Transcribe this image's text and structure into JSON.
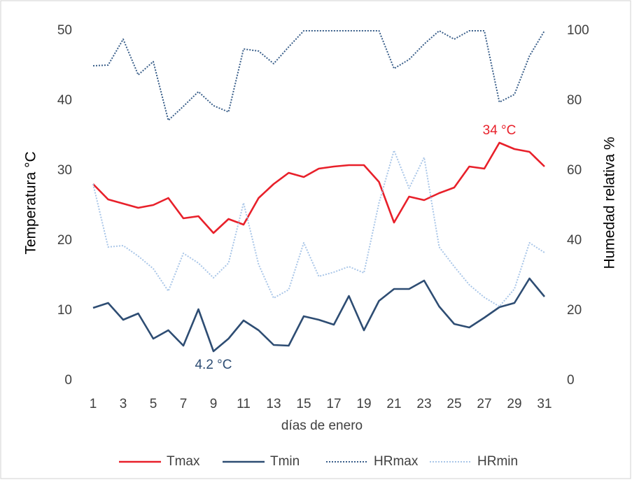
{
  "chart_data": {
    "type": "line",
    "x_label": "días de enero",
    "y_label": "Temperatura °C",
    "y2_label": "Humedad relativa %",
    "x": [
      1,
      2,
      3,
      4,
      5,
      6,
      7,
      8,
      9,
      10,
      11,
      12,
      13,
      14,
      15,
      16,
      17,
      18,
      19,
      20,
      21,
      22,
      23,
      24,
      25,
      26,
      27,
      28,
      29,
      30,
      31
    ],
    "xlim": [
      1,
      31
    ],
    "xticks": [
      1,
      3,
      5,
      7,
      9,
      11,
      13,
      15,
      17,
      19,
      21,
      23,
      25,
      27,
      29,
      31
    ],
    "ylim": [
      0,
      50
    ],
    "yticks": [
      0,
      10,
      20,
      30,
      40,
      50
    ],
    "y2lim": [
      0,
      100
    ],
    "y2ticks": [
      0,
      20,
      40,
      60,
      80,
      100
    ],
    "grid": false,
    "legend": "bottom",
    "series": [
      {
        "name": "Tmax",
        "color": "#e8202a",
        "style": "solid",
        "values": [
          28.1,
          25.9,
          25.3,
          24.7,
          25.1,
          26.1,
          23.2,
          23.5,
          21.1,
          23.1,
          22.3,
          26.1,
          28.1,
          29.7,
          29.1,
          30.3,
          30.6,
          30.8,
          30.8,
          28.4,
          22.6,
          26.3,
          25.8,
          26.8,
          27.6,
          30.6,
          30.3,
          34,
          33.1,
          32.7,
          30.6
        ]
      },
      {
        "name": "Tmin",
        "color": "#2e4d73",
        "style": "solid",
        "values": [
          10.4,
          11.1,
          8.7,
          9.6,
          6.0,
          7.2,
          5.0,
          10.2,
          4.2,
          6.0,
          8.6,
          7.2,
          5.1,
          5.0,
          9.2,
          8.7,
          8.0,
          12.1,
          7.2,
          11.4,
          13.1,
          13.1,
          14.3,
          10.6,
          8.1,
          7.6,
          9.0,
          10.5,
          11.1,
          14.6,
          12.0
        ]
      },
      {
        "name": "HRmax",
        "color": "#3a5f8a",
        "style": "dotted",
        "axis": "y2",
        "values": [
          90,
          90.2,
          97.6,
          87.4,
          91.2,
          74.4,
          78.4,
          82.6,
          78.6,
          76.8,
          94.8,
          94.2,
          90.6,
          95.4,
          100,
          100,
          100,
          100,
          100,
          100,
          89.2,
          91.8,
          96.2,
          100,
          97.6,
          100,
          100,
          79.6,
          81.8,
          92.8,
          100
        ]
      },
      {
        "name": "HRmin",
        "color": "#a9c6e8",
        "style": "dotted",
        "axis": "y2",
        "values": [
          56.2,
          38.2,
          38.6,
          35.6,
          32,
          25.6,
          36.4,
          33.6,
          29.4,
          33.6,
          50.8,
          33.2,
          23.6,
          26,
          39.4,
          29.8,
          31,
          32.6,
          30.8,
          50.8,
          65.8,
          55,
          63.8,
          38.2,
          32.6,
          27.4,
          23.8,
          21.2,
          26.2,
          39.4,
          36.6
        ]
      }
    ],
    "annotations": [
      {
        "text": "34 °C",
        "x": 28,
        "y": 34,
        "color": "#e8202a"
      },
      {
        "text": "4.2 °C",
        "x": 9,
        "y": 4.2,
        "color": "#2e4d73"
      }
    ]
  }
}
